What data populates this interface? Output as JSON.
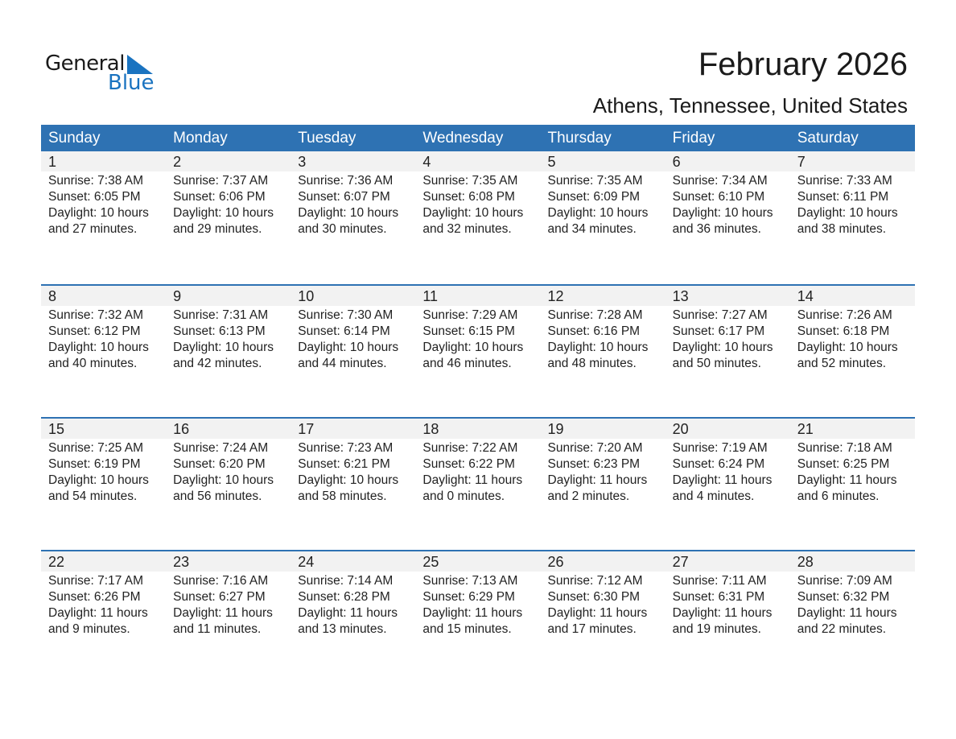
{
  "logo": {
    "general": "General",
    "blue": "Blue"
  },
  "title": "February 2026",
  "location": "Athens, Tennessee, United States",
  "colors": {
    "accent": "#2e72b3",
    "day_band": "#f2f2f2"
  },
  "weekdays": [
    "Sunday",
    "Monday",
    "Tuesday",
    "Wednesday",
    "Thursday",
    "Friday",
    "Saturday"
  ],
  "weeks": [
    [
      {
        "day": "1",
        "sunrise": "Sunrise: 7:38 AM",
        "sunset": "Sunset: 6:05 PM",
        "daylight": "Daylight: 10 hours",
        "minutes": "and 27 minutes."
      },
      {
        "day": "2",
        "sunrise": "Sunrise: 7:37 AM",
        "sunset": "Sunset: 6:06 PM",
        "daylight": "Daylight: 10 hours",
        "minutes": "and 29 minutes."
      },
      {
        "day": "3",
        "sunrise": "Sunrise: 7:36 AM",
        "sunset": "Sunset: 6:07 PM",
        "daylight": "Daylight: 10 hours",
        "minutes": "and 30 minutes."
      },
      {
        "day": "4",
        "sunrise": "Sunrise: 7:35 AM",
        "sunset": "Sunset: 6:08 PM",
        "daylight": "Daylight: 10 hours",
        "minutes": "and 32 minutes."
      },
      {
        "day": "5",
        "sunrise": "Sunrise: 7:35 AM",
        "sunset": "Sunset: 6:09 PM",
        "daylight": "Daylight: 10 hours",
        "minutes": "and 34 minutes."
      },
      {
        "day": "6",
        "sunrise": "Sunrise: 7:34 AM",
        "sunset": "Sunset: 6:10 PM",
        "daylight": "Daylight: 10 hours",
        "minutes": "and 36 minutes."
      },
      {
        "day": "7",
        "sunrise": "Sunrise: 7:33 AM",
        "sunset": "Sunset: 6:11 PM",
        "daylight": "Daylight: 10 hours",
        "minutes": "and 38 minutes."
      }
    ],
    [
      {
        "day": "8",
        "sunrise": "Sunrise: 7:32 AM",
        "sunset": "Sunset: 6:12 PM",
        "daylight": "Daylight: 10 hours",
        "minutes": "and 40 minutes."
      },
      {
        "day": "9",
        "sunrise": "Sunrise: 7:31 AM",
        "sunset": "Sunset: 6:13 PM",
        "daylight": "Daylight: 10 hours",
        "minutes": "and 42 minutes."
      },
      {
        "day": "10",
        "sunrise": "Sunrise: 7:30 AM",
        "sunset": "Sunset: 6:14 PM",
        "daylight": "Daylight: 10 hours",
        "minutes": "and 44 minutes."
      },
      {
        "day": "11",
        "sunrise": "Sunrise: 7:29 AM",
        "sunset": "Sunset: 6:15 PM",
        "daylight": "Daylight: 10 hours",
        "minutes": "and 46 minutes."
      },
      {
        "day": "12",
        "sunrise": "Sunrise: 7:28 AM",
        "sunset": "Sunset: 6:16 PM",
        "daylight": "Daylight: 10 hours",
        "minutes": "and 48 minutes."
      },
      {
        "day": "13",
        "sunrise": "Sunrise: 7:27 AM",
        "sunset": "Sunset: 6:17 PM",
        "daylight": "Daylight: 10 hours",
        "minutes": "and 50 minutes."
      },
      {
        "day": "14",
        "sunrise": "Sunrise: 7:26 AM",
        "sunset": "Sunset: 6:18 PM",
        "daylight": "Daylight: 10 hours",
        "minutes": "and 52 minutes."
      }
    ],
    [
      {
        "day": "15",
        "sunrise": "Sunrise: 7:25 AM",
        "sunset": "Sunset: 6:19 PM",
        "daylight": "Daylight: 10 hours",
        "minutes": "and 54 minutes."
      },
      {
        "day": "16",
        "sunrise": "Sunrise: 7:24 AM",
        "sunset": "Sunset: 6:20 PM",
        "daylight": "Daylight: 10 hours",
        "minutes": "and 56 minutes."
      },
      {
        "day": "17",
        "sunrise": "Sunrise: 7:23 AM",
        "sunset": "Sunset: 6:21 PM",
        "daylight": "Daylight: 10 hours",
        "minutes": "and 58 minutes."
      },
      {
        "day": "18",
        "sunrise": "Sunrise: 7:22 AM",
        "sunset": "Sunset: 6:22 PM",
        "daylight": "Daylight: 11 hours",
        "minutes": "and 0 minutes."
      },
      {
        "day": "19",
        "sunrise": "Sunrise: 7:20 AM",
        "sunset": "Sunset: 6:23 PM",
        "daylight": "Daylight: 11 hours",
        "minutes": "and 2 minutes."
      },
      {
        "day": "20",
        "sunrise": "Sunrise: 7:19 AM",
        "sunset": "Sunset: 6:24 PM",
        "daylight": "Daylight: 11 hours",
        "minutes": "and 4 minutes."
      },
      {
        "day": "21",
        "sunrise": "Sunrise: 7:18 AM",
        "sunset": "Sunset: 6:25 PM",
        "daylight": "Daylight: 11 hours",
        "minutes": "and 6 minutes."
      }
    ],
    [
      {
        "day": "22",
        "sunrise": "Sunrise: 7:17 AM",
        "sunset": "Sunset: 6:26 PM",
        "daylight": "Daylight: 11 hours",
        "minutes": "and 9 minutes."
      },
      {
        "day": "23",
        "sunrise": "Sunrise: 7:16 AM",
        "sunset": "Sunset: 6:27 PM",
        "daylight": "Daylight: 11 hours",
        "minutes": "and 11 minutes."
      },
      {
        "day": "24",
        "sunrise": "Sunrise: 7:14 AM",
        "sunset": "Sunset: 6:28 PM",
        "daylight": "Daylight: 11 hours",
        "minutes": "and 13 minutes."
      },
      {
        "day": "25",
        "sunrise": "Sunrise: 7:13 AM",
        "sunset": "Sunset: 6:29 PM",
        "daylight": "Daylight: 11 hours",
        "minutes": "and 15 minutes."
      },
      {
        "day": "26",
        "sunrise": "Sunrise: 7:12 AM",
        "sunset": "Sunset: 6:30 PM",
        "daylight": "Daylight: 11 hours",
        "minutes": "and 17 minutes."
      },
      {
        "day": "27",
        "sunrise": "Sunrise: 7:11 AM",
        "sunset": "Sunset: 6:31 PM",
        "daylight": "Daylight: 11 hours",
        "minutes": "and 19 minutes."
      },
      {
        "day": "28",
        "sunrise": "Sunrise: 7:09 AM",
        "sunset": "Sunset: 6:32 PM",
        "daylight": "Daylight: 11 hours",
        "minutes": "and 22 minutes."
      }
    ]
  ]
}
